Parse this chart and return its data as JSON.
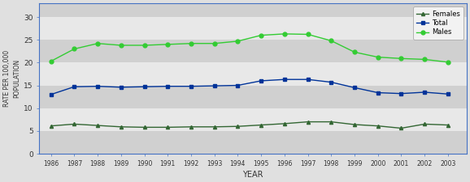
{
  "years": [
    1986,
    1987,
    1988,
    1989,
    1990,
    1991,
    1992,
    1993,
    1994,
    1995,
    1996,
    1997,
    1998,
    1999,
    2000,
    2001,
    2002,
    2003
  ],
  "males": [
    20.3,
    23.0,
    24.2,
    23.8,
    23.8,
    24.0,
    24.2,
    24.2,
    24.7,
    26.0,
    26.3,
    26.2,
    24.8,
    22.3,
    21.2,
    20.9,
    20.7,
    20.1
  ],
  "total": [
    13.0,
    14.7,
    14.8,
    14.6,
    14.7,
    14.8,
    14.8,
    14.9,
    15.0,
    16.0,
    16.3,
    16.3,
    15.7,
    14.5,
    13.4,
    13.2,
    13.5,
    13.1
  ],
  "females": [
    6.1,
    6.5,
    6.2,
    5.9,
    5.8,
    5.8,
    5.9,
    5.9,
    6.0,
    6.3,
    6.6,
    7.0,
    7.0,
    6.4,
    6.1,
    5.6,
    6.5,
    6.3
  ],
  "males_color": "#33cc33",
  "total_color": "#003399",
  "females_color": "#336633",
  "males_label": "Males",
  "total_label": "Total",
  "females_label": "Females",
  "ylabel": "RATE PER 100,000\nPOPULATION",
  "xlabel": "YEAR",
  "ylim": [
    0,
    33
  ],
  "yticks": [
    0,
    5,
    10,
    15,
    20,
    25,
    30
  ],
  "fig_bg": "#e0e0e0",
  "band_dark": "#d0d0d0",
  "band_light": "#e8e8e8",
  "spine_color": "#4472c4",
  "legend_bg": "#f2f2f2"
}
